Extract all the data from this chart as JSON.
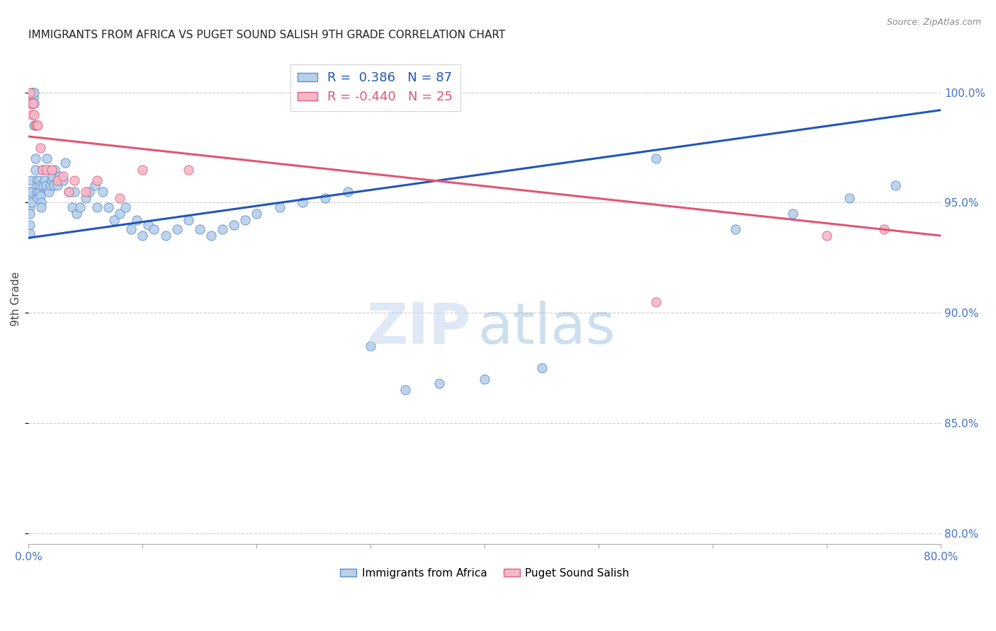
{
  "title": "IMMIGRANTS FROM AFRICA VS PUGET SOUND SALISH 9TH GRADE CORRELATION CHART",
  "source": "Source: ZipAtlas.com",
  "ylabel": "9th Grade",
  "xmin": 0.0,
  "xmax": 80.0,
  "ymin": 79.5,
  "ymax": 101.8,
  "yticks": [
    80.0,
    85.0,
    90.0,
    95.0,
    100.0
  ],
  "ytick_labels": [
    "80.0%",
    "85.0%",
    "90.0%",
    "95.0%",
    "100.0%"
  ],
  "blue_R": 0.386,
  "blue_N": 87,
  "pink_R": -0.44,
  "pink_N": 25,
  "blue_color": "#b8d0e8",
  "pink_color": "#f5b8c8",
  "blue_edge_color": "#5b8fd4",
  "pink_edge_color": "#e06080",
  "blue_line_color": "#2255bb",
  "pink_line_color": "#e05575",
  "legend_label_blue": "Immigrants from Africa",
  "legend_label_pink": "Puget Sound Salish",
  "title_fontsize": 11,
  "axis_label_color": "#4472c4",
  "grid_color": "#cccccc",
  "blue_trendline_x": [
    0.0,
    80.0
  ],
  "blue_trendline_y": [
    93.4,
    99.2
  ],
  "pink_trendline_x": [
    0.0,
    80.0
  ],
  "pink_trendline_y": [
    98.0,
    93.5
  ],
  "blue_scatter_x": [
    0.1,
    0.1,
    0.1,
    0.1,
    0.1,
    0.1,
    0.2,
    0.2,
    0.2,
    0.3,
    0.3,
    0.4,
    0.4,
    0.4,
    0.5,
    0.5,
    0.5,
    0.6,
    0.6,
    0.7,
    0.7,
    0.8,
    0.8,
    0.9,
    0.9,
    1.0,
    1.0,
    1.1,
    1.1,
    1.2,
    1.3,
    1.4,
    1.5,
    1.6,
    1.7,
    1.8,
    1.9,
    2.0,
    2.1,
    2.2,
    2.3,
    2.5,
    2.7,
    3.0,
    3.2,
    3.5,
    3.8,
    4.0,
    4.2,
    4.5,
    5.0,
    5.3,
    5.8,
    6.0,
    6.5,
    7.0,
    7.5,
    8.0,
    8.5,
    9.0,
    9.5,
    10.0,
    10.5,
    11.0,
    12.0,
    13.0,
    14.0,
    15.0,
    16.0,
    17.0,
    18.0,
    19.0,
    20.0,
    22.0,
    24.0,
    26.0,
    28.0,
    30.0,
    33.0,
    36.0,
    40.0,
    45.0,
    55.0,
    62.0,
    67.0,
    72.0,
    76.0
  ],
  "blue_scatter_y": [
    95.5,
    95.2,
    94.8,
    94.5,
    94.0,
    93.6,
    96.0,
    95.5,
    95.0,
    100.0,
    99.5,
    100.0,
    99.8,
    99.5,
    100.0,
    99.5,
    98.5,
    97.0,
    96.5,
    96.0,
    95.5,
    95.8,
    95.2,
    96.0,
    95.5,
    95.8,
    95.3,
    95.0,
    94.8,
    96.5,
    95.8,
    96.0,
    95.8,
    97.0,
    96.5,
    95.5,
    95.8,
    96.0,
    96.2,
    95.8,
    96.5,
    95.8,
    96.2,
    96.0,
    96.8,
    95.5,
    94.8,
    95.5,
    94.5,
    94.8,
    95.2,
    95.5,
    95.8,
    94.8,
    95.5,
    94.8,
    94.2,
    94.5,
    94.8,
    93.8,
    94.2,
    93.5,
    94.0,
    93.8,
    93.5,
    93.8,
    94.2,
    93.8,
    93.5,
    93.8,
    94.0,
    94.2,
    94.5,
    94.8,
    95.0,
    95.2,
    95.5,
    88.5,
    86.5,
    86.8,
    87.0,
    87.5,
    97.0,
    93.8,
    94.5,
    95.2,
    95.8
  ],
  "pink_scatter_x": [
    0.1,
    0.1,
    0.2,
    0.3,
    0.4,
    0.5,
    0.6,
    0.7,
    0.8,
    1.0,
    1.2,
    1.5,
    2.0,
    2.5,
    3.0,
    3.5,
    4.0,
    5.0,
    6.0,
    8.0,
    10.0,
    14.0,
    55.0,
    70.0,
    75.0
  ],
  "pink_scatter_y": [
    100.0,
    99.5,
    99.5,
    99.0,
    99.5,
    99.0,
    98.5,
    98.5,
    98.5,
    97.5,
    96.5,
    96.5,
    96.5,
    96.0,
    96.2,
    95.5,
    96.0,
    95.5,
    96.0,
    95.2,
    96.5,
    96.5,
    90.5,
    93.5,
    93.8
  ]
}
